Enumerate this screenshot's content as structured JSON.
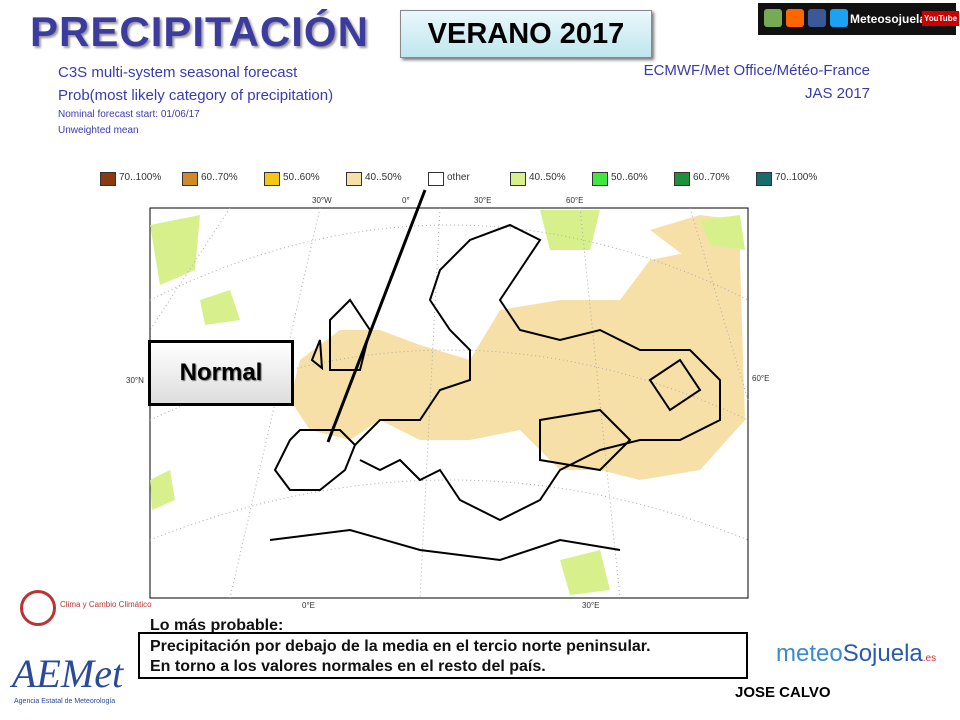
{
  "header": {
    "title": "PRECIPITACIÓN",
    "season": "VERANO 2017",
    "social": "Meteosojuela",
    "youtube": "YouTube"
  },
  "forecast": {
    "lines": [
      "C3S multi-system seasonal forecast",
      "Prob(most likely category of precipitation)",
      "Nominal forecast start: 01/06/17",
      "Unweighted mean"
    ],
    "source": "ECMWF/Met Office/Météo-France",
    "period": "JAS 2017"
  },
  "legend": {
    "items": [
      {
        "label": "70..100%",
        "color": "#8b3a10"
      },
      {
        "label": "60..70%",
        "color": "#d08a2a"
      },
      {
        "label": "50..60%",
        "color": "#f5c518"
      },
      {
        "label": "40..50%",
        "color": "#f7e0a8"
      },
      {
        "label": "other",
        "color": "#ffffff"
      },
      {
        "label": "40..50%",
        "color": "#d8f08c"
      },
      {
        "label": "50..60%",
        "color": "#3ee83e"
      },
      {
        "label": "60..70%",
        "color": "#1f8f3a"
      },
      {
        "label": "70..100%",
        "color": "#1a6b6b"
      }
    ]
  },
  "map": {
    "top_labels": [
      "30°W",
      "0°",
      "30°E",
      "60°E"
    ],
    "left_label": "30°N",
    "right_label": "60°E",
    "bottom_labels": [
      "0°E",
      "30°E"
    ],
    "annotation": "Normal"
  },
  "summary": {
    "heading": "Lo más probable:",
    "lines": [
      "Precipitación por debajo de la media en el tercio norte peninsular.",
      "En torno a los valores normales en el resto del país."
    ]
  },
  "credits": {
    "brand": [
      "meteo",
      "Sojuela",
      ".es"
    ],
    "author": "JOSE CALVO",
    "aemet": "AEMet",
    "aemet_sub": "Agencia Estatal de Meteorología",
    "climate": "Clima y Cambio Climático"
  }
}
